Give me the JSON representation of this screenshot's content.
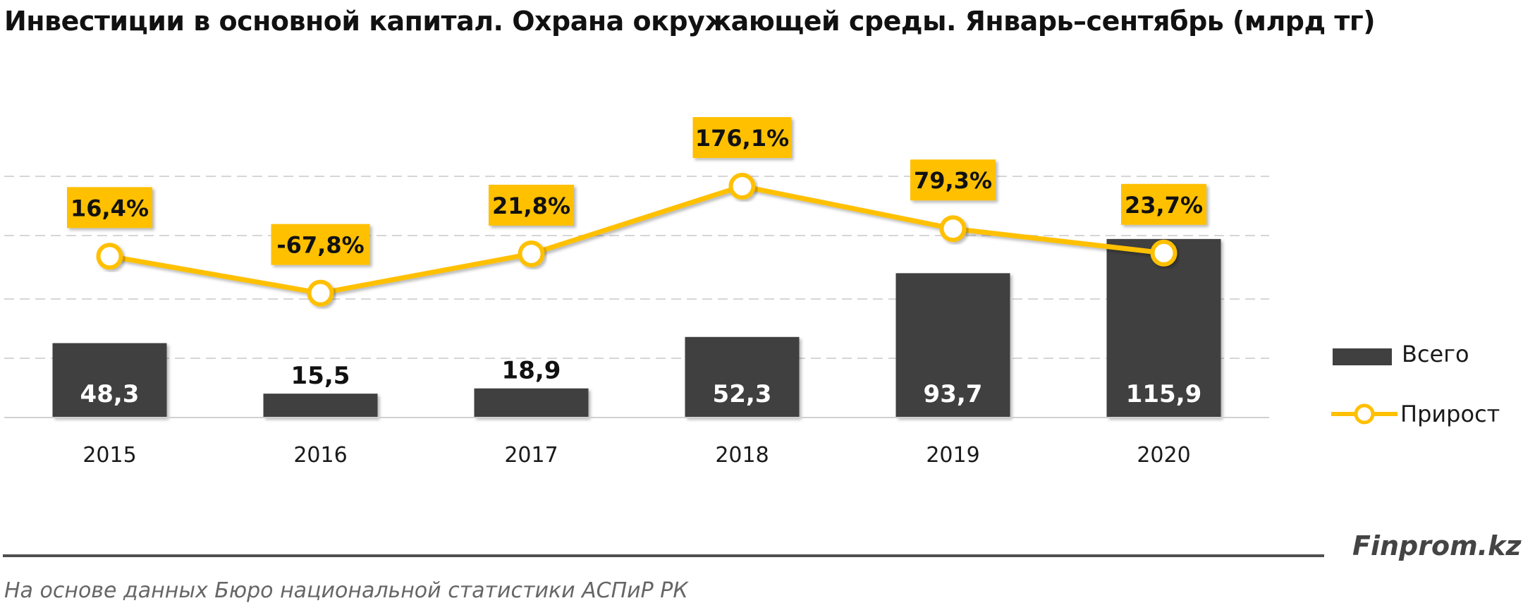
{
  "chart_data": {
    "type": "bar",
    "title": "Инвестиции в основной капитал. Охрана окружающей среды. Январь–сентябрь (млрд тг)",
    "categories": [
      "2015",
      "2016",
      "2017",
      "2018",
      "2019",
      "2020"
    ],
    "series": [
      {
        "name": "Всего",
        "type": "bar",
        "color": "#404040",
        "values": [
          48.3,
          15.5,
          18.9,
          52.3,
          93.7,
          115.9
        ],
        "labels": [
          "48,3",
          "15,5",
          "18,9",
          "52,3",
          "93,7",
          "115,9"
        ]
      },
      {
        "name": "Прирост",
        "type": "line",
        "color": "#FFC000",
        "values": [
          16.4,
          -67.8,
          21.8,
          176.1,
          79.3,
          23.7
        ],
        "labels": [
          "16,4%",
          "-67,8%",
          "21,8%",
          "176,1%",
          "79,3%",
          "23,7%"
        ]
      }
    ],
    "legend": "right",
    "grid": true,
    "gridlines": "dashed horizontal"
  },
  "branding": "Finprom.kz",
  "source": "На основе данных Бюро национальной статистики АСПиР РК"
}
